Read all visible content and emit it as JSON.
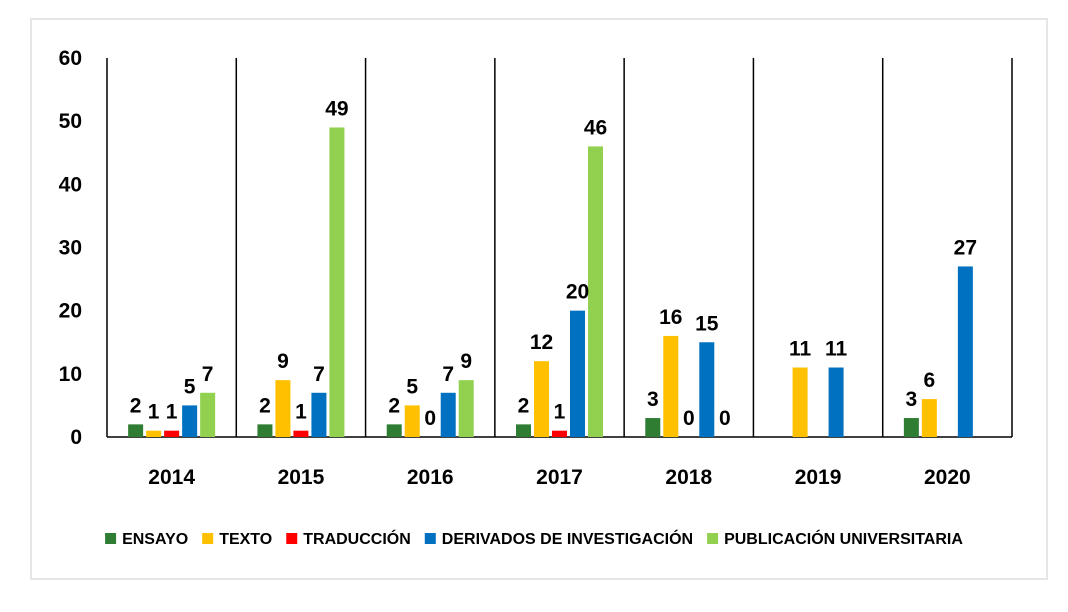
{
  "chart_data": {
    "type": "bar",
    "categories": [
      "2014",
      "2015",
      "2016",
      "2017",
      "2018",
      "2019",
      "2020"
    ],
    "series": [
      {
        "name": "ENSAYO",
        "color": "#2e7d32",
        "values": [
          2,
          2,
          2,
          2,
          3,
          null,
          3
        ],
        "labels": [
          "2",
          "2",
          "2",
          "2",
          "3",
          "",
          "3"
        ]
      },
      {
        "name": "TEXTO",
        "color": "#ffc000",
        "values": [
          1,
          9,
          5,
          12,
          16,
          11,
          6
        ],
        "labels": [
          "1",
          "9",
          "5",
          "12",
          "16",
          "11",
          "6"
        ]
      },
      {
        "name": "TRADUCCIÓN",
        "color": "#ff0000",
        "values": [
          1,
          1,
          null,
          1,
          null,
          null,
          null
        ],
        "labels": [
          "1",
          "1",
          "",
          "1",
          "",
          "",
          ""
        ]
      },
      {
        "name": "DERIVADOS DE INVESTIGACIÓN",
        "color": "#0070c0",
        "values": [
          5,
          7,
          7,
          20,
          15,
          11,
          27
        ],
        "labels": [
          "5",
          "7",
          "7",
          "20",
          "15",
          "11",
          "27"
        ]
      },
      {
        "name": "PUBLICACIÓN UNIVERSITARIA",
        "color": "#92d050",
        "values": [
          7,
          49,
          9,
          46,
          0,
          null,
          null
        ],
        "labels": [
          "7",
          "49",
          "9",
          "46",
          "0",
          "",
          ""
        ]
      }
    ],
    "extra_labels": [
      {
        "category": "2016",
        "text": "0"
      },
      {
        "category": "2018",
        "text": "0"
      }
    ],
    "yticks": [
      "0",
      "10",
      "20",
      "30",
      "40",
      "50",
      "60"
    ],
    "ylim": [
      0,
      60
    ],
    "title": "",
    "xlabel": "",
    "ylabel": "",
    "grid": false,
    "legend_position": "bottom"
  }
}
